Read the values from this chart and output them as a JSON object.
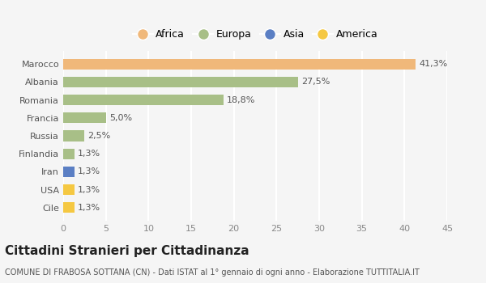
{
  "categories": [
    "Cile",
    "USA",
    "Iran",
    "Finlandia",
    "Russia",
    "Francia",
    "Romania",
    "Albania",
    "Marocco"
  ],
  "values": [
    1.3,
    1.3,
    1.3,
    1.3,
    2.5,
    5.0,
    18.8,
    27.5,
    41.3
  ],
  "colors": [
    "#f5c842",
    "#f5c842",
    "#5b7fc4",
    "#a8bf87",
    "#a8bf87",
    "#a8bf87",
    "#a8bf87",
    "#a8bf87",
    "#f0b87a"
  ],
  "labels": [
    "1,3%",
    "1,3%",
    "1,3%",
    "1,3%",
    "2,5%",
    "5,0%",
    "18,8%",
    "27,5%",
    "41,3%"
  ],
  "legend_names": [
    "Africa",
    "Europa",
    "Asia",
    "America"
  ],
  "legend_colors": [
    "#f0b87a",
    "#a8bf87",
    "#5b7fc4",
    "#f5c842"
  ],
  "xlim": [
    0,
    45
  ],
  "xticks": [
    0,
    5,
    10,
    15,
    20,
    25,
    30,
    35,
    40,
    45
  ],
  "title": "Cittadini Stranieri per Cittadinanza",
  "subtitle": "COMUNE DI FRABOSA SOTTANA (CN) - Dati ISTAT al 1° gennaio di ogni anno - Elaborazione TUTTITALIA.IT",
  "background_color": "#f5f5f5",
  "grid_color": "#ffffff",
  "bar_height": 0.6
}
